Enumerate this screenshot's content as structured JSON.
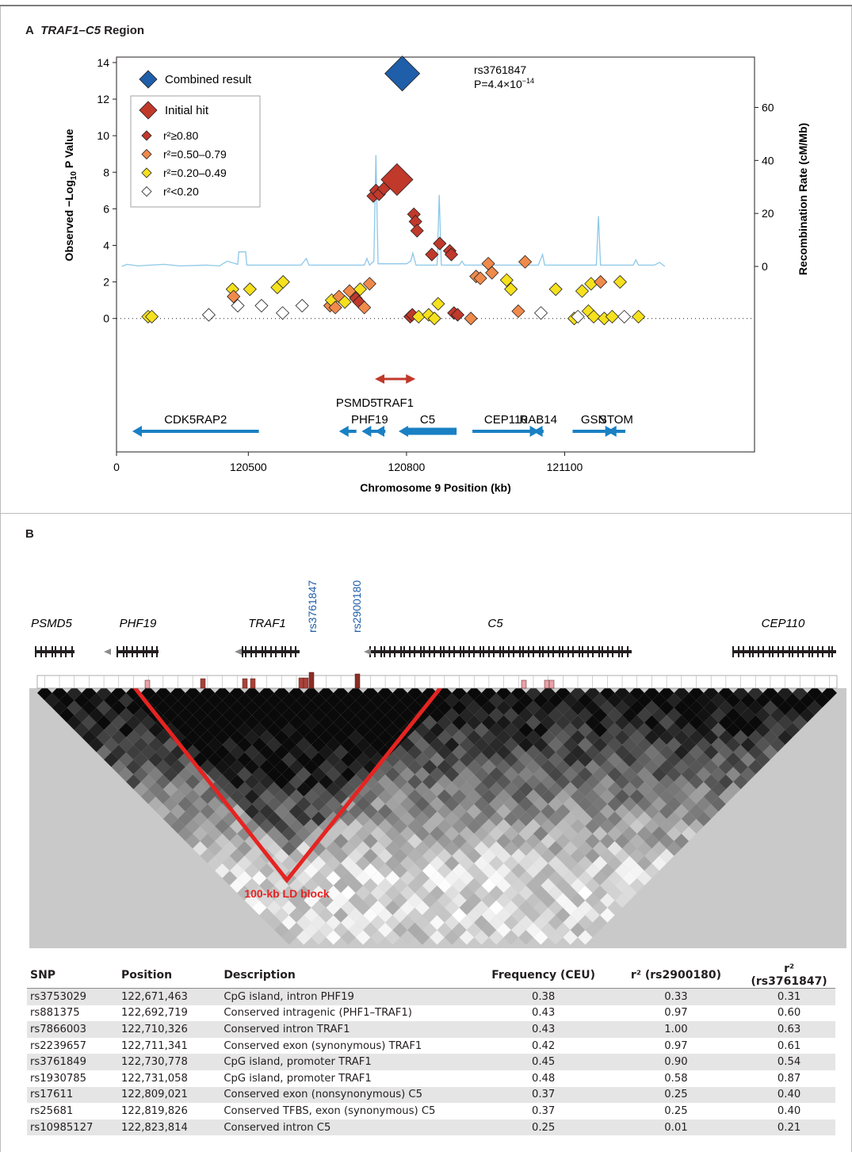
{
  "panel_a": {
    "letter": "A",
    "title": "TRAF1–C5",
    "title_suffix": " Region"
  },
  "panel_b": {
    "letter": "B",
    "block_label": "100-kb LD block"
  },
  "legend": {
    "combined": "Combined result",
    "initial": "Initial hit",
    "r2_1": "r²≥0.80",
    "r2_2": "r²=0.50–0.79",
    "r2_3": "r²=0.20–0.49",
    "r2_4": "r²<0.20"
  },
  "top_snp": {
    "name": "rs3761847",
    "p": "P=4.4×10",
    "p_exp": "−14"
  },
  "colors": {
    "combined": "#1f5ea8",
    "r2_high": "#c0392b",
    "r2_mid": "#f08a4b",
    "r2_low": "#f5e11d",
    "r2_none": "#ffffff",
    "recomb": "#8cc8e8",
    "gene": "#1a80c4",
    "ld_box": "#e52421",
    "snp_label": "#1f5ea8"
  },
  "chart_data": [
    {
      "type": "scatter",
      "title": "TRAF1–C5 Region",
      "xlabel": "Chromosome 9 Position (kb)",
      "ylabel": "Observed −Log10 P Value",
      "y2label": "Recombination Rate (cM/Mb)",
      "xlim": [
        120250,
        121460
      ],
      "ylim": [
        -7.3,
        14.3
      ],
      "y2lim": [
        -70,
        79
      ],
      "x_ticks": [
        120500,
        120800,
        121100
      ],
      "x_tick_labels": [
        "120500",
        "120800",
        "121100"
      ],
      "x_zero_label": "0",
      "y_ticks": [
        0,
        2,
        4,
        6,
        8,
        10,
        12,
        14
      ],
      "y2_ticks": [
        0,
        20,
        40,
        60
      ],
      "grid": false,
      "legend_position": "top-left",
      "top_hit": {
        "x": 120782,
        "y": 7.6
      },
      "combined_result": {
        "x": 120792,
        "y": 13.4,
        "label": "rs3761847"
      },
      "points": [
        {
          "x": 120310,
          "y": 0.1,
          "c": "low"
        },
        {
          "x": 120317,
          "y": 0.1,
          "c": "low"
        },
        {
          "x": 120425,
          "y": 0.2,
          "c": "none"
        },
        {
          "x": 120470,
          "y": 1.6,
          "c": "low"
        },
        {
          "x": 120472,
          "y": 1.2,
          "c": "mid"
        },
        {
          "x": 120480,
          "y": 0.7,
          "c": "none"
        },
        {
          "x": 120503,
          "y": 1.6,
          "c": "low"
        },
        {
          "x": 120525,
          "y": 0.7,
          "c": "none"
        },
        {
          "x": 120555,
          "y": 1.7,
          "c": "low"
        },
        {
          "x": 120565,
          "y": 0.3,
          "c": "none"
        },
        {
          "x": 120566,
          "y": 2.0,
          "c": "low"
        },
        {
          "x": 120602,
          "y": 0.7,
          "c": "none"
        },
        {
          "x": 120655,
          "y": 0.7,
          "c": "mid"
        },
        {
          "x": 120658,
          "y": 1.0,
          "c": "low"
        },
        {
          "x": 120665,
          "y": 0.6,
          "c": "mid"
        },
        {
          "x": 120672,
          "y": 1.2,
          "c": "mid"
        },
        {
          "x": 120683,
          "y": 0.9,
          "c": "low"
        },
        {
          "x": 120692,
          "y": 1.5,
          "c": "mid"
        },
        {
          "x": 120704,
          "y": 1.1,
          "c": "high"
        },
        {
          "x": 120710,
          "y": 0.9,
          "c": "high"
        },
        {
          "x": 120712,
          "y": 1.6,
          "c": "low"
        },
        {
          "x": 120720,
          "y": 0.6,
          "c": "mid"
        },
        {
          "x": 120730,
          "y": 1.9,
          "c": "mid"
        },
        {
          "x": 120737,
          "y": 6.7,
          "c": "high"
        },
        {
          "x": 120742,
          "y": 7.0,
          "c": "high"
        },
        {
          "x": 120748,
          "y": 6.8,
          "c": "high"
        },
        {
          "x": 120757,
          "y": 7.1,
          "c": "high"
        },
        {
          "x": 120807,
          "y": 0.1,
          "c": "high"
        },
        {
          "x": 120811,
          "y": 0.2,
          "c": "high"
        },
        {
          "x": 120814,
          "y": 5.7,
          "c": "high"
        },
        {
          "x": 120817,
          "y": 5.3,
          "c": "high"
        },
        {
          "x": 120820,
          "y": 4.8,
          "c": "high"
        },
        {
          "x": 120823,
          "y": 0.1,
          "c": "low"
        },
        {
          "x": 120842,
          "y": 0.2,
          "c": "low"
        },
        {
          "x": 120848,
          "y": 3.5,
          "c": "high"
        },
        {
          "x": 120853,
          "y": 0.0,
          "c": "low"
        },
        {
          "x": 120860,
          "y": 0.8,
          "c": "low"
        },
        {
          "x": 120863,
          "y": 4.1,
          "c": "high"
        },
        {
          "x": 120882,
          "y": 3.7,
          "c": "high"
        },
        {
          "x": 120885,
          "y": 3.5,
          "c": "high"
        },
        {
          "x": 120890,
          "y": 0.3,
          "c": "high"
        },
        {
          "x": 120897,
          "y": 0.2,
          "c": "high"
        },
        {
          "x": 120922,
          "y": 0.0,
          "c": "mid"
        },
        {
          "x": 120932,
          "y": 2.3,
          "c": "mid"
        },
        {
          "x": 120940,
          "y": 2.2,
          "c": "mid"
        },
        {
          "x": 120955,
          "y": 3.0,
          "c": "mid"
        },
        {
          "x": 120962,
          "y": 2.5,
          "c": "mid"
        },
        {
          "x": 120990,
          "y": 2.1,
          "c": "low"
        },
        {
          "x": 120998,
          "y": 1.6,
          "c": "low"
        },
        {
          "x": 121012,
          "y": 0.4,
          "c": "mid"
        },
        {
          "x": 121025,
          "y": 3.1,
          "c": "mid"
        },
        {
          "x": 121055,
          "y": 0.3,
          "c": "none"
        },
        {
          "x": 121083,
          "y": 1.6,
          "c": "low"
        },
        {
          "x": 121118,
          "y": 0.0,
          "c": "low"
        },
        {
          "x": 121125,
          "y": 0.1,
          "c": "none"
        },
        {
          "x": 121133,
          "y": 1.5,
          "c": "low"
        },
        {
          "x": 121145,
          "y": 0.4,
          "c": "low"
        },
        {
          "x": 121150,
          "y": 1.9,
          "c": "low"
        },
        {
          "x": 121155,
          "y": 0.1,
          "c": "low"
        },
        {
          "x": 121168,
          "y": 2.0,
          "c": "mid"
        },
        {
          "x": 121175,
          "y": 0.0,
          "c": "low"
        },
        {
          "x": 121190,
          "y": 0.1,
          "c": "low"
        },
        {
          "x": 121205,
          "y": 2.0,
          "c": "low"
        },
        {
          "x": 121213,
          "y": 0.1,
          "c": "none"
        },
        {
          "x": 121240,
          "y": 0.1,
          "c": "low"
        }
      ],
      "recombination": [
        [
          120260,
          0
        ],
        [
          120270,
          0.8
        ],
        [
          120290,
          0.2
        ],
        [
          120340,
          0.8
        ],
        [
          120370,
          0.2
        ],
        [
          120420,
          0.5
        ],
        [
          120445,
          0.2
        ],
        [
          120460,
          2.0
        ],
        [
          120480,
          0.8
        ],
        [
          120482,
          5.5
        ],
        [
          120495,
          5.5
        ],
        [
          120497,
          0.5
        ],
        [
          120600,
          0.5
        ],
        [
          120610,
          3.0
        ],
        [
          120615,
          0.5
        ],
        [
          120720,
          0.5
        ],
        [
          120725,
          3.0
        ],
        [
          120730,
          0.5
        ],
        [
          120738,
          2.0
        ],
        [
          120742,
          42
        ],
        [
          120746,
          1.0
        ],
        [
          120800,
          1.0
        ],
        [
          120808,
          2.0
        ],
        [
          120812,
          5.0
        ],
        [
          120818,
          0.5
        ],
        [
          120858,
          0.5
        ],
        [
          120862,
          27
        ],
        [
          120866,
          0.5
        ],
        [
          120900,
          0.5
        ],
        [
          120905,
          2.0
        ],
        [
          120910,
          0.5
        ],
        [
          121050,
          0.5
        ],
        [
          121058,
          4.5
        ],
        [
          121062,
          0.5
        ],
        [
          121160,
          0.5
        ],
        [
          121164,
          19
        ],
        [
          121168,
          0.5
        ],
        [
          121230,
          0.5
        ],
        [
          121235,
          2.5
        ],
        [
          121240,
          0.5
        ],
        [
          121270,
          0.5
        ],
        [
          121280,
          1.5
        ],
        [
          121290,
          0
        ]
      ],
      "genes": [
        {
          "name": "CDK5RAP2",
          "start": 120280,
          "end": 120520,
          "dir": "left",
          "row": 0
        },
        {
          "name": "PHF19",
          "start": 120715,
          "end": 120745,
          "dir": "left",
          "row": 0
        },
        {
          "name": "",
          "start": 120672,
          "end": 120705,
          "dir": "left",
          "row": 0
        },
        {
          "name": "",
          "start": 120740,
          "end": 120760,
          "dir": "left",
          "row": 0
        },
        {
          "name": "C5",
          "start": 120785,
          "end": 120895,
          "dir": "left",
          "row": 0
        },
        {
          "name": "CEP110",
          "start": 120925,
          "end": 121052,
          "dir": "right",
          "row": 0
        },
        {
          "name": "RAB14",
          "start": 121040,
          "end": 121060,
          "dir": "left",
          "row": 0
        },
        {
          "name": "GSN",
          "start": 121115,
          "end": 121195,
          "dir": "right",
          "row": 0
        },
        {
          "name": "STOM",
          "start": 121180,
          "end": 121215,
          "dir": "left",
          "row": 0
        }
      ],
      "gene_labels_upper": [
        {
          "name": "PSMD5",
          "x": 120705
        },
        {
          "name": "TRAF1",
          "x": 120778
        }
      ],
      "traf1_arrow": {
        "start": 120740,
        "end": 120817
      }
    }
  ],
  "ld_plot": {
    "snp_labels": [
      "rs3761847",
      "rs2900180"
    ],
    "genes": [
      "PSMD5",
      "PHF19",
      "TRAF1",
      "C5",
      "CEP110"
    ]
  },
  "table": {
    "headers": [
      "SNP",
      "Position",
      "Description",
      "Frequency (CEU)",
      "r² (rs2900180)",
      "r² (rs3761847)"
    ],
    "rows": [
      [
        "rs3753029",
        "122,671,463",
        "CpG island, intron PHF19",
        "0.38",
        "0.33",
        "0.31"
      ],
      [
        "rs881375",
        "122,692,719",
        "Conserved intragenic (PHF1–TRAF1)",
        "0.43",
        "0.97",
        "0.60"
      ],
      [
        "rs7866003",
        "122,710,326",
        "Conserved intron TRAF1",
        "0.43",
        "1.00",
        "0.63"
      ],
      [
        "rs2239657",
        "122,711,341",
        "Conserved exon (synonymous) TRAF1",
        "0.42",
        "0.97",
        "0.61"
      ],
      [
        "rs3761849",
        "122,730,778",
        "CpG island, promoter TRAF1",
        "0.45",
        "0.90",
        "0.54"
      ],
      [
        "rs1930785",
        "122,731,058",
        "CpG island, promoter TRAF1",
        "0.48",
        "0.58",
        "0.87"
      ],
      [
        "rs17611",
        "122,809,021",
        "Conserved exon (nonsynonymous) C5",
        "0.37",
        "0.25",
        "0.40"
      ],
      [
        "rs25681",
        "122,819,826",
        "Conserved TFBS, exon (synonymous) C5",
        "0.37",
        "0.25",
        "0.40"
      ],
      [
        "rs10985127",
        "122,823,814",
        "Conserved intron C5",
        "0.25",
        "0.01",
        "0.21"
      ]
    ]
  }
}
